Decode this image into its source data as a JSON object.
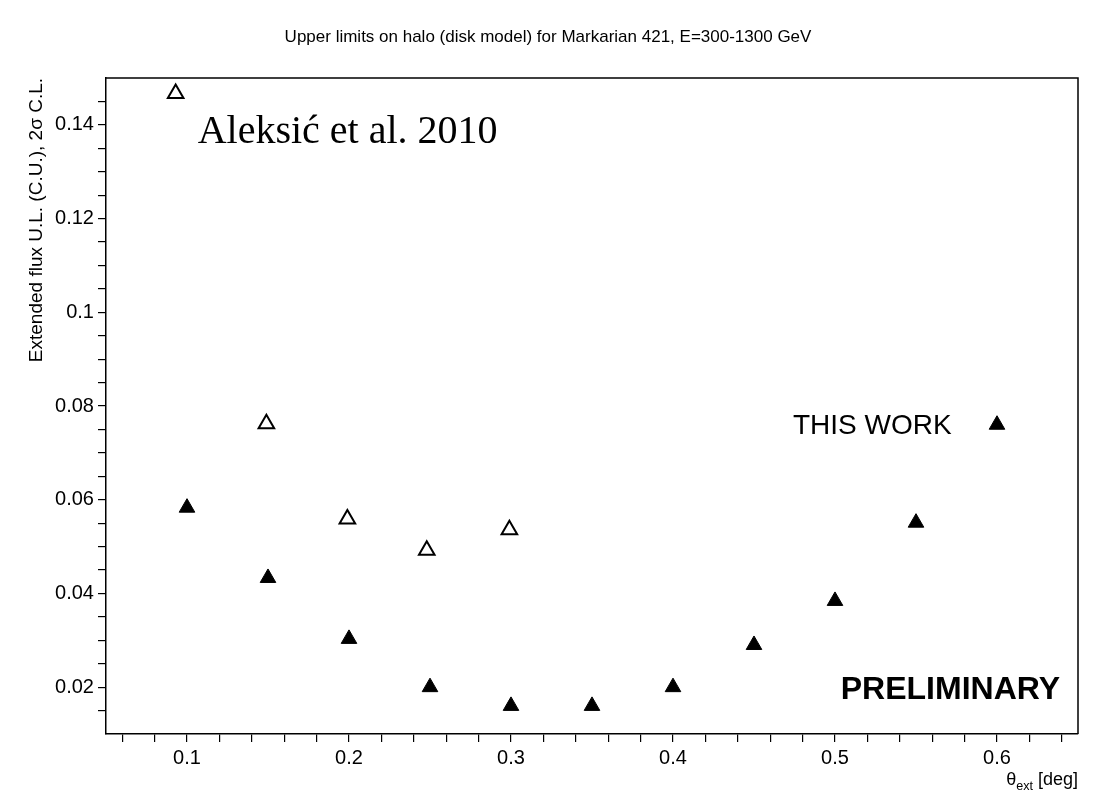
{
  "chart_data": {
    "type": "scatter",
    "title": "Upper limits on halo (disk model) for Markarian 421, E=300-1300 GeV",
    "xlabel": "θ$_{ext}$ [deg]",
    "ylabel": "Extended flux U.L. (C.U.), 2σ C.L.",
    "series": [
      {
        "name": "Aleksić et al. 2010",
        "color": "#000000",
        "x": [
          0.093,
          0.149,
          0.199,
          0.248,
          0.299
        ],
        "values": [
          0.1467,
          0.0762,
          0.0559,
          0.0492,
          0.0536
        ]
      },
      {
        "name": "THIS WORK",
        "color": "#000000",
        "x": [
          0.1,
          0.15,
          0.2,
          0.25,
          0.3,
          0.35,
          0.4,
          0.45,
          0.5,
          0.55,
          0.6
        ],
        "values": [
          0.0583,
          0.0433,
          0.0303,
          0.02,
          0.016,
          0.016,
          0.02,
          0.029,
          0.0384,
          0.0551,
          0.076
        ]
      }
    ],
    "annotations": [
      "PRELIMINARY"
    ],
    "marker": "triangle",
    "grid": false,
    "legend": "top left",
    "xlim": [
      0.05,
      0.65
    ],
    "xticks": [
      {
        "value": 0.06,
        "label": null
      },
      {
        "value": 0.08,
        "label": null
      },
      0.1,
      {
        "value": 0.12,
        "label": null
      },
      {
        "value": 0.14,
        "label": null
      },
      {
        "value": 0.16,
        "label": null
      },
      {
        "value": 0.18,
        "label": null
      },
      0.2,
      {
        "value": 0.22,
        "label": null
      },
      {
        "value": 0.24,
        "label": null
      },
      {
        "value": 0.26,
        "label": null
      },
      {
        "value": 0.28,
        "label": null
      },
      0.3,
      {
        "value": 0.32,
        "label": null
      },
      {
        "value": 0.34,
        "label": null
      },
      {
        "value": 0.36,
        "label": null
      },
      {
        "value": 0.38,
        "label": null
      },
      0.4,
      {
        "value": 0.42,
        "label": null
      },
      {
        "value": 0.44,
        "label": null
      },
      {
        "value": 0.46,
        "label": null
      },
      {
        "value": 0.48,
        "label": null
      },
      0.5,
      {
        "value": 0.52,
        "label": null
      },
      {
        "value": 0.54,
        "label": null
      },
      {
        "value": 0.56,
        "label": null
      },
      {
        "value": 0.58,
        "label": null
      },
      0.6,
      {
        "value": 0.62,
        "label": null
      },
      {
        "value": 0.64,
        "label": null
      }
    ],
    "ylim": [
      0.01,
      0.15
    ],
    "yticks": [
      {
        "value": 0.015,
        "label": null
      },
      0.02,
      {
        "value": 0.025,
        "label": null
      },
      {
        "value": 0.03,
        "label": null
      },
      {
        "value": 0.035,
        "label": null
      },
      0.04,
      {
        "value": 0.045,
        "label": null
      },
      {
        "value": 0.05,
        "label": null
      },
      {
        "value": 0.055,
        "label": null
      },
      0.06,
      {
        "value": 0.065,
        "label": null
      },
      {
        "value": 0.07,
        "label": null
      },
      {
        "value": 0.075,
        "label": null
      },
      0.08,
      {
        "value": 0.085,
        "label": null
      },
      {
        "value": 0.09,
        "label": null
      },
      {
        "value": 0.095,
        "label": null
      },
      0.1,
      {
        "value": 0.105,
        "label": null
      },
      {
        "value": 0.11,
        "label": null
      },
      {
        "value": 0.115,
        "label": null
      },
      0.12,
      {
        "value": 0.125,
        "label": null
      },
      {
        "value": 0.13,
        "label": null
      },
      {
        "value": 0.135,
        "label": null
      },
      0.14,
      {
        "value": 0.145,
        "label": null
      }
    ]
  }
}
